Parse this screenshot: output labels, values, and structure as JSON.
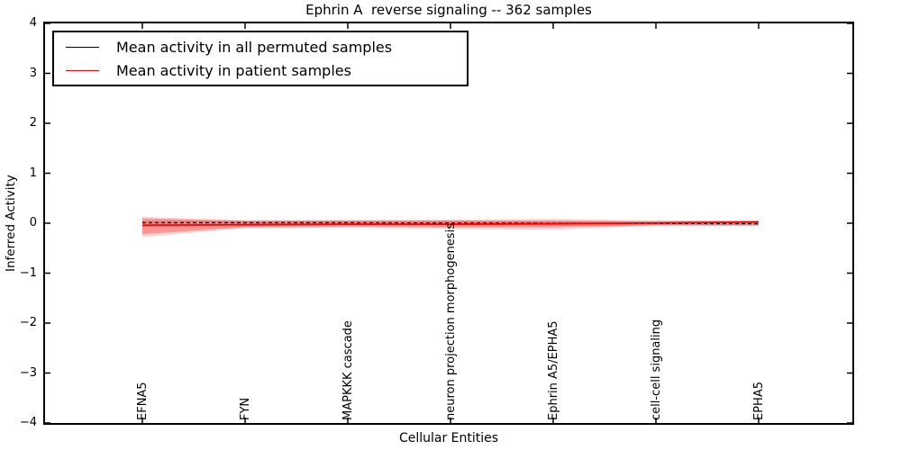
{
  "chart_data": {
    "type": "line",
    "title": "Ephrin A  reverse signaling -- 362 samples",
    "xlabel": "Cellular Entities",
    "ylabel": "Inferred Activity",
    "ylim": [
      -4,
      4
    ],
    "grid": false,
    "yticks": {
      "values": [
        4,
        3,
        2,
        1,
        0,
        -1,
        -2,
        -3,
        -4
      ],
      "labels": [
        "4",
        "3",
        "2",
        "1",
        "0",
        "−1",
        "−2",
        "−3",
        "−4"
      ]
    },
    "categories": [
      "EFNA5",
      "FYN",
      "MAPKKK cascade",
      "neuron projection morphogenesis",
      "Ephrin A5/EPHA5",
      "cell-cell signaling",
      "EPHA5"
    ],
    "legend": {
      "position": "upper left",
      "entries": [
        {
          "label": "Mean activity in all permuted samples",
          "color": "#000000"
        },
        {
          "label": "Mean activity in patient samples",
          "color": "#ff0000"
        }
      ]
    },
    "series": [
      {
        "name": "Mean activity in all permuted samples",
        "color": "#000000",
        "style": "dashed",
        "values": [
          0.01,
          0.01,
          0.01,
          0.005,
          0.0,
          -0.005,
          -0.01
        ]
      },
      {
        "name": "Mean activity in patient samples",
        "color": "#ff0000",
        "style": "solid",
        "values": [
          -0.04,
          -0.03,
          -0.02,
          -0.02,
          -0.01,
          0.005,
          0.025
        ]
      }
    ],
    "bands": [
      {
        "name": "permuted-samples-std-band",
        "color": "#000000",
        "opacity": 0.12,
        "upper": [
          0.055,
          0.055,
          0.055,
          0.055,
          0.055,
          0.055,
          0.055
        ],
        "lower": [
          -0.055,
          -0.055,
          -0.055,
          -0.055,
          -0.055,
          -0.055,
          -0.055
        ]
      },
      {
        "name": "patient-samples-band-outer",
        "color": "#ff0000",
        "opacity": 0.16,
        "upper": [
          0.13,
          0.06,
          0.065,
          0.07,
          0.09,
          0.05,
          0.05
        ],
        "lower": [
          -0.28,
          -0.1,
          -0.09,
          -0.11,
          -0.13,
          -0.05,
          -0.05
        ]
      },
      {
        "name": "patient-samples-band-inner",
        "color": "#ff0000",
        "opacity": 0.3,
        "upper": [
          0.1,
          0.045,
          0.05,
          0.055,
          0.045,
          0.03,
          0.04
        ],
        "lower": [
          -0.22,
          -0.08,
          -0.07,
          -0.085,
          -0.08,
          -0.035,
          -0.04
        ]
      }
    ]
  }
}
